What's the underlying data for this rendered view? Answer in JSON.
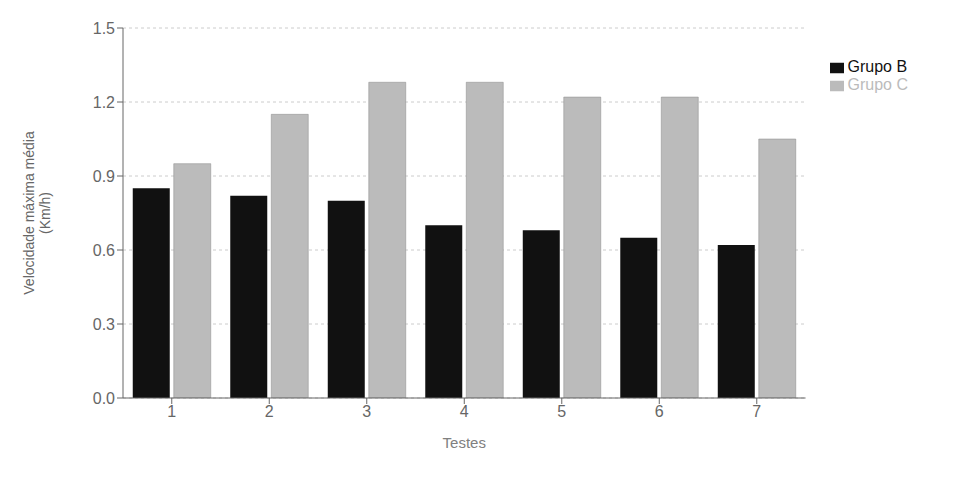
{
  "chart_data": {
    "type": "bar",
    "xlabel": "Testes",
    "ylabel": "Velocidade máxima média\n(Km/h)",
    "categories": [
      "1",
      "2",
      "3",
      "4",
      "5",
      "6",
      "7"
    ],
    "series": [
      {
        "name": "Grupo B",
        "color": "#111111",
        "values": [
          0.85,
          0.82,
          0.8,
          0.7,
          0.68,
          0.65,
          0.62
        ]
      },
      {
        "name": "Grupo C",
        "color": "#bbbbbb",
        "values": [
          0.95,
          1.15,
          1.28,
          1.28,
          1.22,
          1.22,
          1.05
        ]
      }
    ],
    "ylim": [
      0,
      1.5
    ],
    "yticks": [
      {
        "value": 0,
        "label": "0.0"
      },
      0.3,
      0.6,
      0.9,
      1.2,
      1.5
    ],
    "grid": true,
    "legend": "right"
  }
}
